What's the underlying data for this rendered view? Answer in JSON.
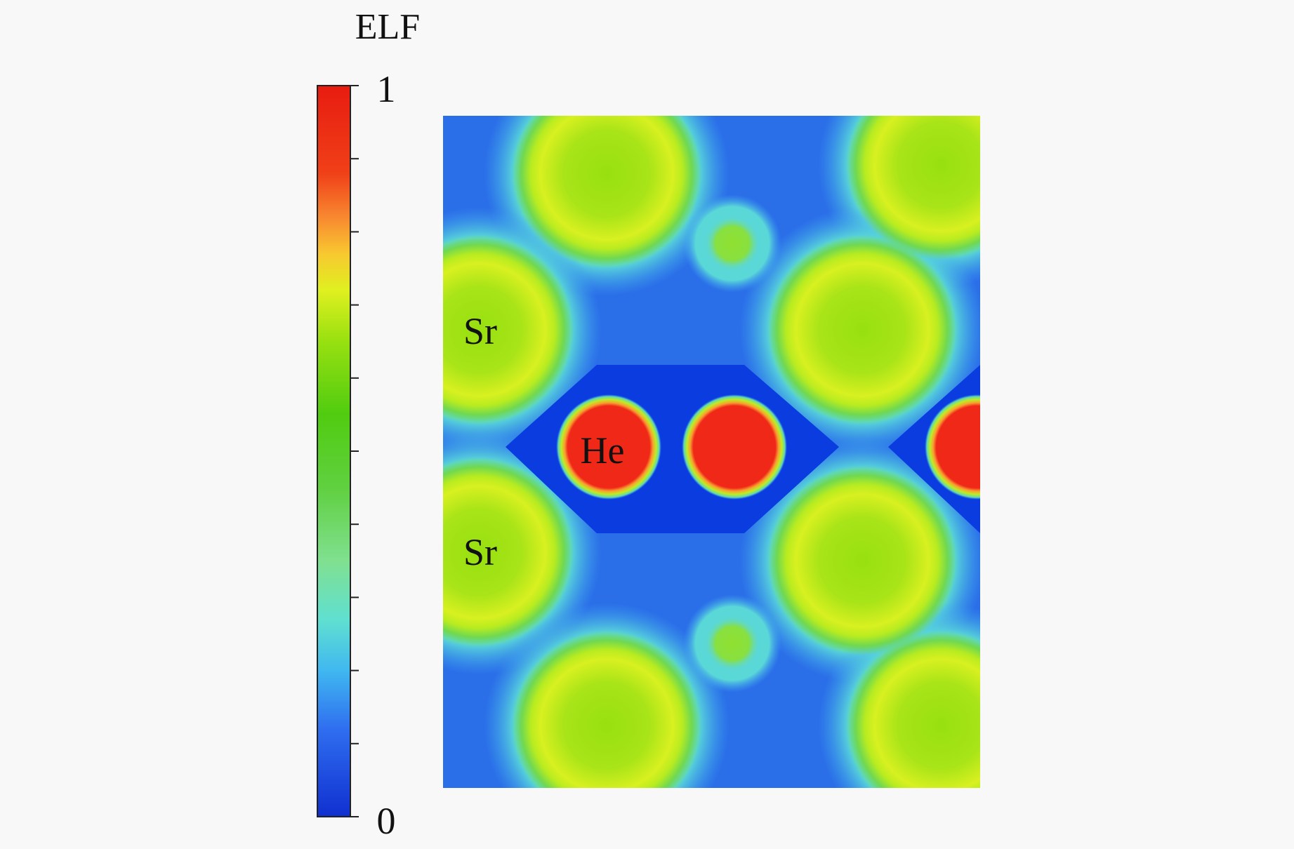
{
  "colorbar": {
    "title": "ELF",
    "max_label": "1",
    "min_label": "0",
    "range": [
      0,
      1
    ],
    "minor_ticks": 10,
    "colors": [
      "#1033d0",
      "#2f6ef0",
      "#58d8e0",
      "#7fe07a",
      "#55d01a",
      "#a8e818",
      "#f0f020",
      "#f89a30",
      "#f04010",
      "#e82010"
    ]
  },
  "map": {
    "atom_labels": {
      "sr_upper": "Sr",
      "sr_lower": "Sr",
      "he": "He"
    },
    "colors": {
      "background_blue": "#2a6ee8",
      "deep_blue": "#0a3ce0",
      "halo_cyan": "#5ad8d8",
      "sr_green": "#a8e820",
      "sr_yellow": "#e0f020",
      "he_red": "#f02818"
    }
  }
}
